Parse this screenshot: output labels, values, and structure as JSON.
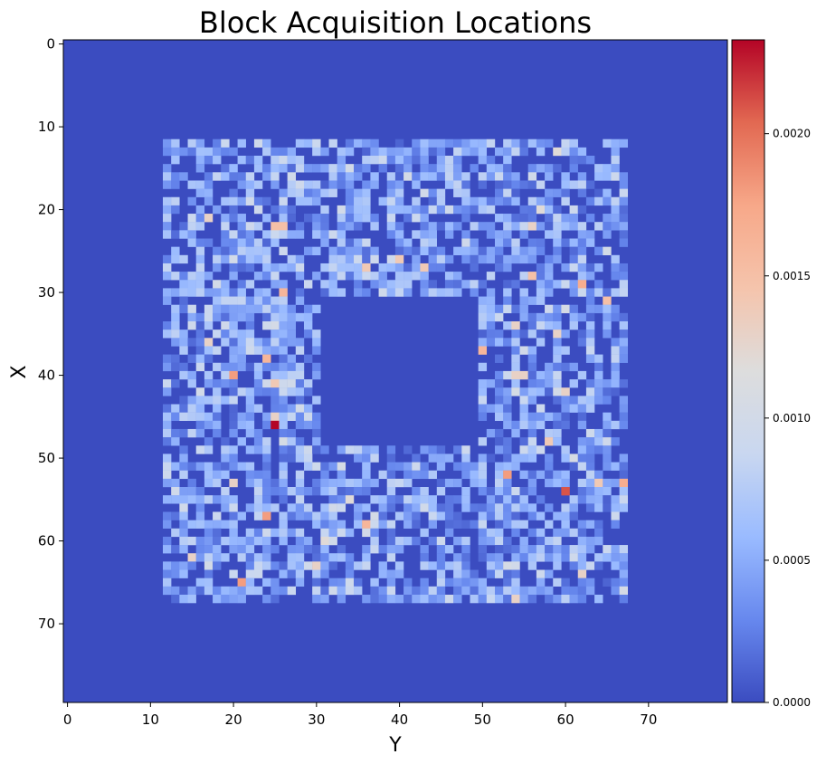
{
  "chart_data": {
    "type": "heatmap",
    "title": "Block Acquisition Locations",
    "xlabel": "Y",
    "ylabel": "X",
    "grid_size": 80,
    "x_ticks": [
      "0",
      "10",
      "20",
      "30",
      "40",
      "50",
      "60",
      "70"
    ],
    "y_ticks": [
      "0",
      "10",
      "20",
      "30",
      "40",
      "50",
      "60",
      "70"
    ],
    "colorbar": {
      "min": 0.0,
      "max": 0.00233,
      "ticks": [
        "0.0000",
        "0.0005",
        "0.0010",
        "0.0015",
        "0.0020"
      ],
      "colormap": "coolwarm",
      "stops": [
        "#3b4cc0",
        "#6788ee",
        "#9abbff",
        "#c9d7f0",
        "#dddddd",
        "#f5c4ac",
        "#f7a889",
        "#e26952",
        "#b40426"
      ]
    },
    "nonzero_region": {
      "outer_rows": [
        12,
        67
      ],
      "outer_cols": [
        12,
        67
      ],
      "inner_empty_rows": [
        31,
        48
      ],
      "inner_empty_cols": [
        31,
        49
      ],
      "typical_range": [
        0.0,
        0.0011
      ]
    },
    "highlights": [
      {
        "row": 46,
        "col": 25,
        "value": 0.00233
      },
      {
        "row": 54,
        "col": 60,
        "value": 0.0021
      },
      {
        "row": 40,
        "col": 20,
        "value": 0.0018
      },
      {
        "row": 65,
        "col": 21,
        "value": 0.0018
      },
      {
        "row": 57,
        "col": 24,
        "value": 0.0018
      },
      {
        "row": 52,
        "col": 53,
        "value": 0.0018
      },
      {
        "row": 29,
        "col": 62,
        "value": 0.0017
      },
      {
        "row": 53,
        "col": 67,
        "value": 0.0017
      },
      {
        "row": 22,
        "col": 25,
        "value": 0.0015
      },
      {
        "row": 22,
        "col": 26,
        "value": 0.0015
      },
      {
        "row": 30,
        "col": 26,
        "value": 0.0016
      },
      {
        "row": 38,
        "col": 24,
        "value": 0.0016
      },
      {
        "row": 37,
        "col": 50,
        "value": 0.0016
      },
      {
        "row": 58,
        "col": 36,
        "value": 0.0016
      },
      {
        "row": 31,
        "col": 65,
        "value": 0.0015
      },
      {
        "row": 28,
        "col": 56,
        "value": 0.0015
      },
      {
        "row": 26,
        "col": 40,
        "value": 0.0014
      },
      {
        "row": 27,
        "col": 36,
        "value": 0.0014
      },
      {
        "row": 27,
        "col": 43,
        "value": 0.0014
      },
      {
        "row": 40,
        "col": 54,
        "value": 0.0013
      },
      {
        "row": 40,
        "col": 55,
        "value": 0.0013
      },
      {
        "row": 41,
        "col": 25,
        "value": 0.0014
      },
      {
        "row": 34,
        "col": 54,
        "value": 0.0013
      },
      {
        "row": 48,
        "col": 58,
        "value": 0.0014
      },
      {
        "row": 21,
        "col": 17,
        "value": 0.0013
      },
      {
        "row": 36,
        "col": 17,
        "value": 0.0013
      },
      {
        "row": 53,
        "col": 20,
        "value": 0.0013
      },
      {
        "row": 45,
        "col": 25,
        "value": 0.0013
      },
      {
        "row": 63,
        "col": 30,
        "value": 0.0013
      },
      {
        "row": 22,
        "col": 56,
        "value": 0.0013
      },
      {
        "row": 67,
        "col": 54,
        "value": 0.0013
      },
      {
        "row": 62,
        "col": 15,
        "value": 0.0013
      },
      {
        "row": 42,
        "col": 60,
        "value": 0.0013
      },
      {
        "row": 35,
        "col": 59,
        "value": 0.0013
      },
      {
        "row": 53,
        "col": 64,
        "value": 0.0014
      },
      {
        "row": 64,
        "col": 62,
        "value": 0.0013
      },
      {
        "row": 13,
        "col": 59,
        "value": 0.0012
      },
      {
        "row": 20,
        "col": 57,
        "value": 0.0012
      },
      {
        "row": 55,
        "col": 34,
        "value": 0.0012
      },
      {
        "row": 60,
        "col": 31,
        "value": 0.0012
      }
    ]
  }
}
